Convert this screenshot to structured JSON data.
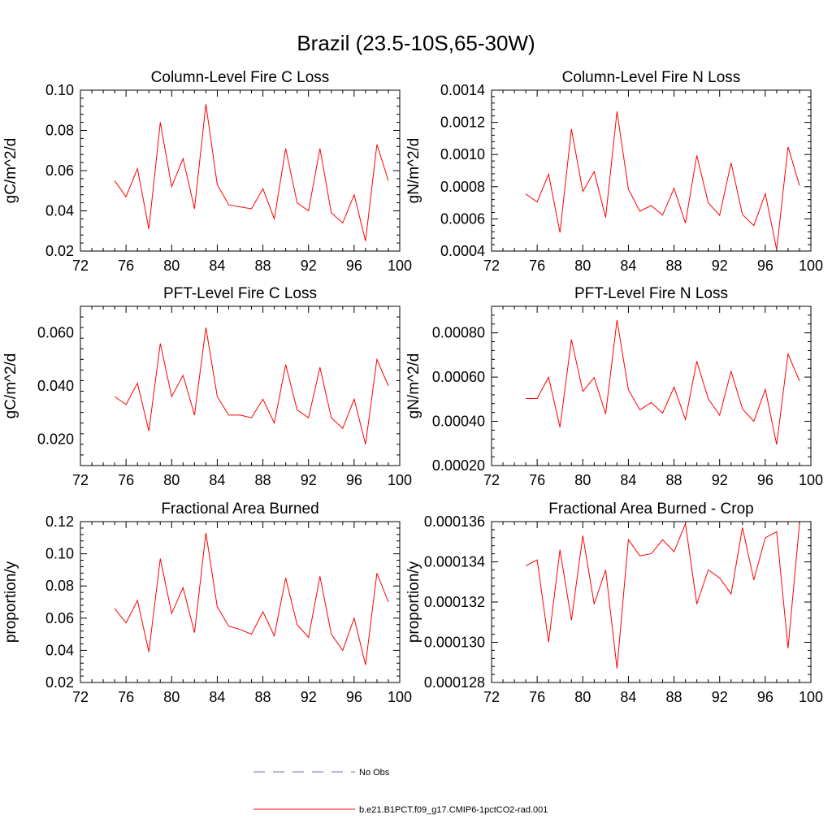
{
  "figure": {
    "title": "Brazil (23.5-10S,65-30W)"
  },
  "legend": {
    "entries": [
      {
        "label": "No Obs",
        "color": "#6f6fb8",
        "style": "dashed"
      },
      {
        "label": "b.e21.B1PCT.f09_g17.CMIP6-1pctCO2-rad.001",
        "color": "#ff0000",
        "style": "solid"
      }
    ]
  },
  "chart_data": [
    {
      "type": "line",
      "title": "Column-Level Fire C Loss",
      "ylabel": "gC/m^2/d",
      "xlim": [
        72,
        100
      ],
      "ylim": [
        0.02,
        0.1
      ],
      "xticks": [
        72,
        76,
        80,
        84,
        88,
        92,
        96,
        100
      ],
      "xtick_labels": [
        "72",
        "76",
        "80",
        "84",
        "88",
        "92",
        "96",
        "100"
      ],
      "yticks": [
        0.02,
        0.04,
        0.06,
        0.08,
        0.1
      ],
      "ytick_labels": [
        "0.02",
        "0.04",
        "0.06",
        "0.08",
        "0.10"
      ],
      "series": [
        {
          "color": "#ff0000",
          "x": [
            75,
            76,
            77,
            78,
            79,
            80,
            81,
            82,
            83,
            84,
            85,
            86,
            87,
            88,
            89,
            90,
            91,
            92,
            93,
            94,
            95,
            96,
            97,
            98,
            99
          ],
          "values": [
            0.055,
            0.047,
            0.061,
            0.031,
            0.084,
            0.052,
            0.066,
            0.041,
            0.093,
            0.053,
            0.043,
            0.042,
            0.041,
            0.051,
            0.036,
            0.071,
            0.044,
            0.04,
            0.071,
            0.039,
            0.034,
            0.048,
            0.025,
            0.073,
            0.055
          ]
        }
      ]
    },
    {
      "type": "line",
      "title": "Column-Level Fire N Loss",
      "ylabel": "gN/m^2/d",
      "xlim": [
        72,
        100
      ],
      "ylim": [
        0.0004,
        0.0014
      ],
      "xticks": [
        72,
        76,
        80,
        84,
        88,
        92,
        96,
        100
      ],
      "xtick_labels": [
        "72",
        "76",
        "80",
        "84",
        "88",
        "92",
        "96",
        "100"
      ],
      "yticks": [
        0.0004,
        0.0006,
        0.0008,
        0.001,
        0.0012,
        0.0014
      ],
      "ytick_labels": [
        "0.0004",
        "0.0006",
        "0.0008",
        "0.0010",
        "0.0012",
        "0.0014"
      ],
      "series": [
        {
          "color": "#ff0000",
          "x": [
            75,
            76,
            77,
            78,
            79,
            80,
            81,
            82,
            83,
            84,
            85,
            86,
            87,
            88,
            89,
            90,
            91,
            92,
            93,
            94,
            95,
            96,
            97,
            98,
            99
          ],
          "values": [
            0.000755,
            0.000705,
            0.000878,
            0.000515,
            0.001159,
            0.00077,
            0.000894,
            0.000608,
            0.001268,
            0.000785,
            0.000648,
            0.000683,
            0.000623,
            0.00079,
            0.000573,
            0.000995,
            0.0007,
            0.000622,
            0.000949,
            0.000627,
            0.000558,
            0.000757,
            0.000408,
            0.001048,
            0.000808
          ]
        }
      ]
    },
    {
      "type": "line",
      "title": "PFT-Level Fire C Loss",
      "ylabel": "gC/m^2/d",
      "xlim": [
        72,
        100
      ],
      "ylim": [
        0.01,
        0.07
      ],
      "xticks": [
        72,
        76,
        80,
        84,
        88,
        92,
        96,
        100
      ],
      "xtick_labels": [
        "72",
        "76",
        "80",
        "84",
        "88",
        "92",
        "96",
        "100"
      ],
      "yticks": [
        0.02,
        0.04,
        0.06
      ],
      "ytick_labels": [
        "0.020",
        "0.040",
        "0.060"
      ],
      "series": [
        {
          "color": "#ff0000",
          "x": [
            75,
            76,
            77,
            78,
            79,
            80,
            81,
            82,
            83,
            84,
            85,
            86,
            87,
            88,
            89,
            90,
            91,
            92,
            93,
            94,
            95,
            96,
            97,
            98,
            99
          ],
          "values": [
            0.036,
            0.033,
            0.041,
            0.023,
            0.056,
            0.036,
            0.044,
            0.029,
            0.062,
            0.036,
            0.029,
            0.029,
            0.028,
            0.035,
            0.026,
            0.048,
            0.031,
            0.028,
            0.047,
            0.028,
            0.024,
            0.035,
            0.018,
            0.05,
            0.04
          ]
        }
      ]
    },
    {
      "type": "line",
      "title": "PFT-Level Fire N Loss",
      "ylabel": "gN/m^2/d",
      "xlim": [
        72,
        100
      ],
      "ylim": [
        0.0002,
        0.00092
      ],
      "xticks": [
        72,
        76,
        80,
        84,
        88,
        92,
        96,
        100
      ],
      "xtick_labels": [
        "72",
        "76",
        "80",
        "84",
        "88",
        "92",
        "96",
        "100"
      ],
      "yticks": [
        0.0002,
        0.0004,
        0.0006,
        0.0008
      ],
      "ytick_labels": [
        "0.00020",
        "0.00040",
        "0.00060",
        "0.00080"
      ],
      "series": [
        {
          "color": "#ff0000",
          "x": [
            75,
            76,
            77,
            78,
            79,
            80,
            81,
            82,
            83,
            84,
            85,
            86,
            87,
            88,
            89,
            90,
            91,
            92,
            93,
            94,
            95,
            96,
            97,
            98,
            99
          ],
          "values": [
            0.000503,
            0.000503,
            0.0006,
            0.000373,
            0.00077,
            0.000535,
            0.000598,
            0.000433,
            0.000858,
            0.000543,
            0.000452,
            0.000485,
            0.000437,
            0.000555,
            0.000408,
            0.000672,
            0.000502,
            0.000428,
            0.000626,
            0.000456,
            0.0004,
            0.000545,
            0.000295,
            0.000705,
            0.000582
          ]
        }
      ]
    },
    {
      "type": "line",
      "title": "Fractional Area Burned",
      "ylabel": "proportion/y",
      "xlim": [
        72,
        100
      ],
      "ylim": [
        0.02,
        0.12
      ],
      "xticks": [
        72,
        76,
        80,
        84,
        88,
        92,
        96,
        100
      ],
      "xtick_labels": [
        "72",
        "76",
        "80",
        "84",
        "88",
        "92",
        "96",
        "100"
      ],
      "yticks": [
        0.02,
        0.04,
        0.06,
        0.08,
        0.1,
        0.12
      ],
      "ytick_labels": [
        "0.02",
        "0.04",
        "0.06",
        "0.08",
        "0.10",
        "0.12"
      ],
      "series": [
        {
          "color": "#ff0000",
          "x": [
            75,
            76,
            77,
            78,
            79,
            80,
            81,
            82,
            83,
            84,
            85,
            86,
            87,
            88,
            89,
            90,
            91,
            92,
            93,
            94,
            95,
            96,
            97,
            98,
            99
          ],
          "values": [
            0.066,
            0.057,
            0.071,
            0.039,
            0.097,
            0.063,
            0.079,
            0.051,
            0.113,
            0.067,
            0.055,
            0.053,
            0.05,
            0.064,
            0.049,
            0.085,
            0.056,
            0.048,
            0.086,
            0.05,
            0.04,
            0.06,
            0.031,
            0.088,
            0.07
          ]
        }
      ]
    },
    {
      "type": "line",
      "title": "Fractional Area Burned - Crop",
      "ylabel": "proportion/y",
      "xlim": [
        72,
        100
      ],
      "ylim": [
        0.000128,
        0.000136
      ],
      "xticks": [
        72,
        76,
        80,
        84,
        88,
        92,
        96,
        100
      ],
      "xtick_labels": [
        "72",
        "76",
        "80",
        "84",
        "88",
        "92",
        "96",
        "100"
      ],
      "yticks": [
        0.000128,
        0.00013,
        0.000132,
        0.000134,
        0.000136
      ],
      "ytick_labels": [
        "0.000128",
        "0.000130",
        "0.000132",
        "0.000134",
        "0.000136"
      ],
      "series": [
        {
          "color": "#ff0000",
          "x": [
            75,
            76,
            77,
            78,
            79,
            80,
            81,
            82,
            83,
            84,
            85,
            86,
            87,
            88,
            89,
            90,
            91,
            92,
            93,
            94,
            95,
            96,
            97,
            98,
            99
          ],
          "values": [
            0.0001338,
            0.0001341,
            0.00013,
            0.0001346,
            0.0001311,
            0.0001353,
            0.0001319,
            0.0001336,
            0.0001287,
            0.0001351,
            0.0001343,
            0.0001344,
            0.0001351,
            0.0001345,
            0.0001359,
            0.0001319,
            0.0001336,
            0.0001332,
            0.0001324,
            0.0001357,
            0.0001331,
            0.0001352,
            0.0001355,
            0.0001297,
            0.0001359
          ]
        }
      ]
    }
  ]
}
